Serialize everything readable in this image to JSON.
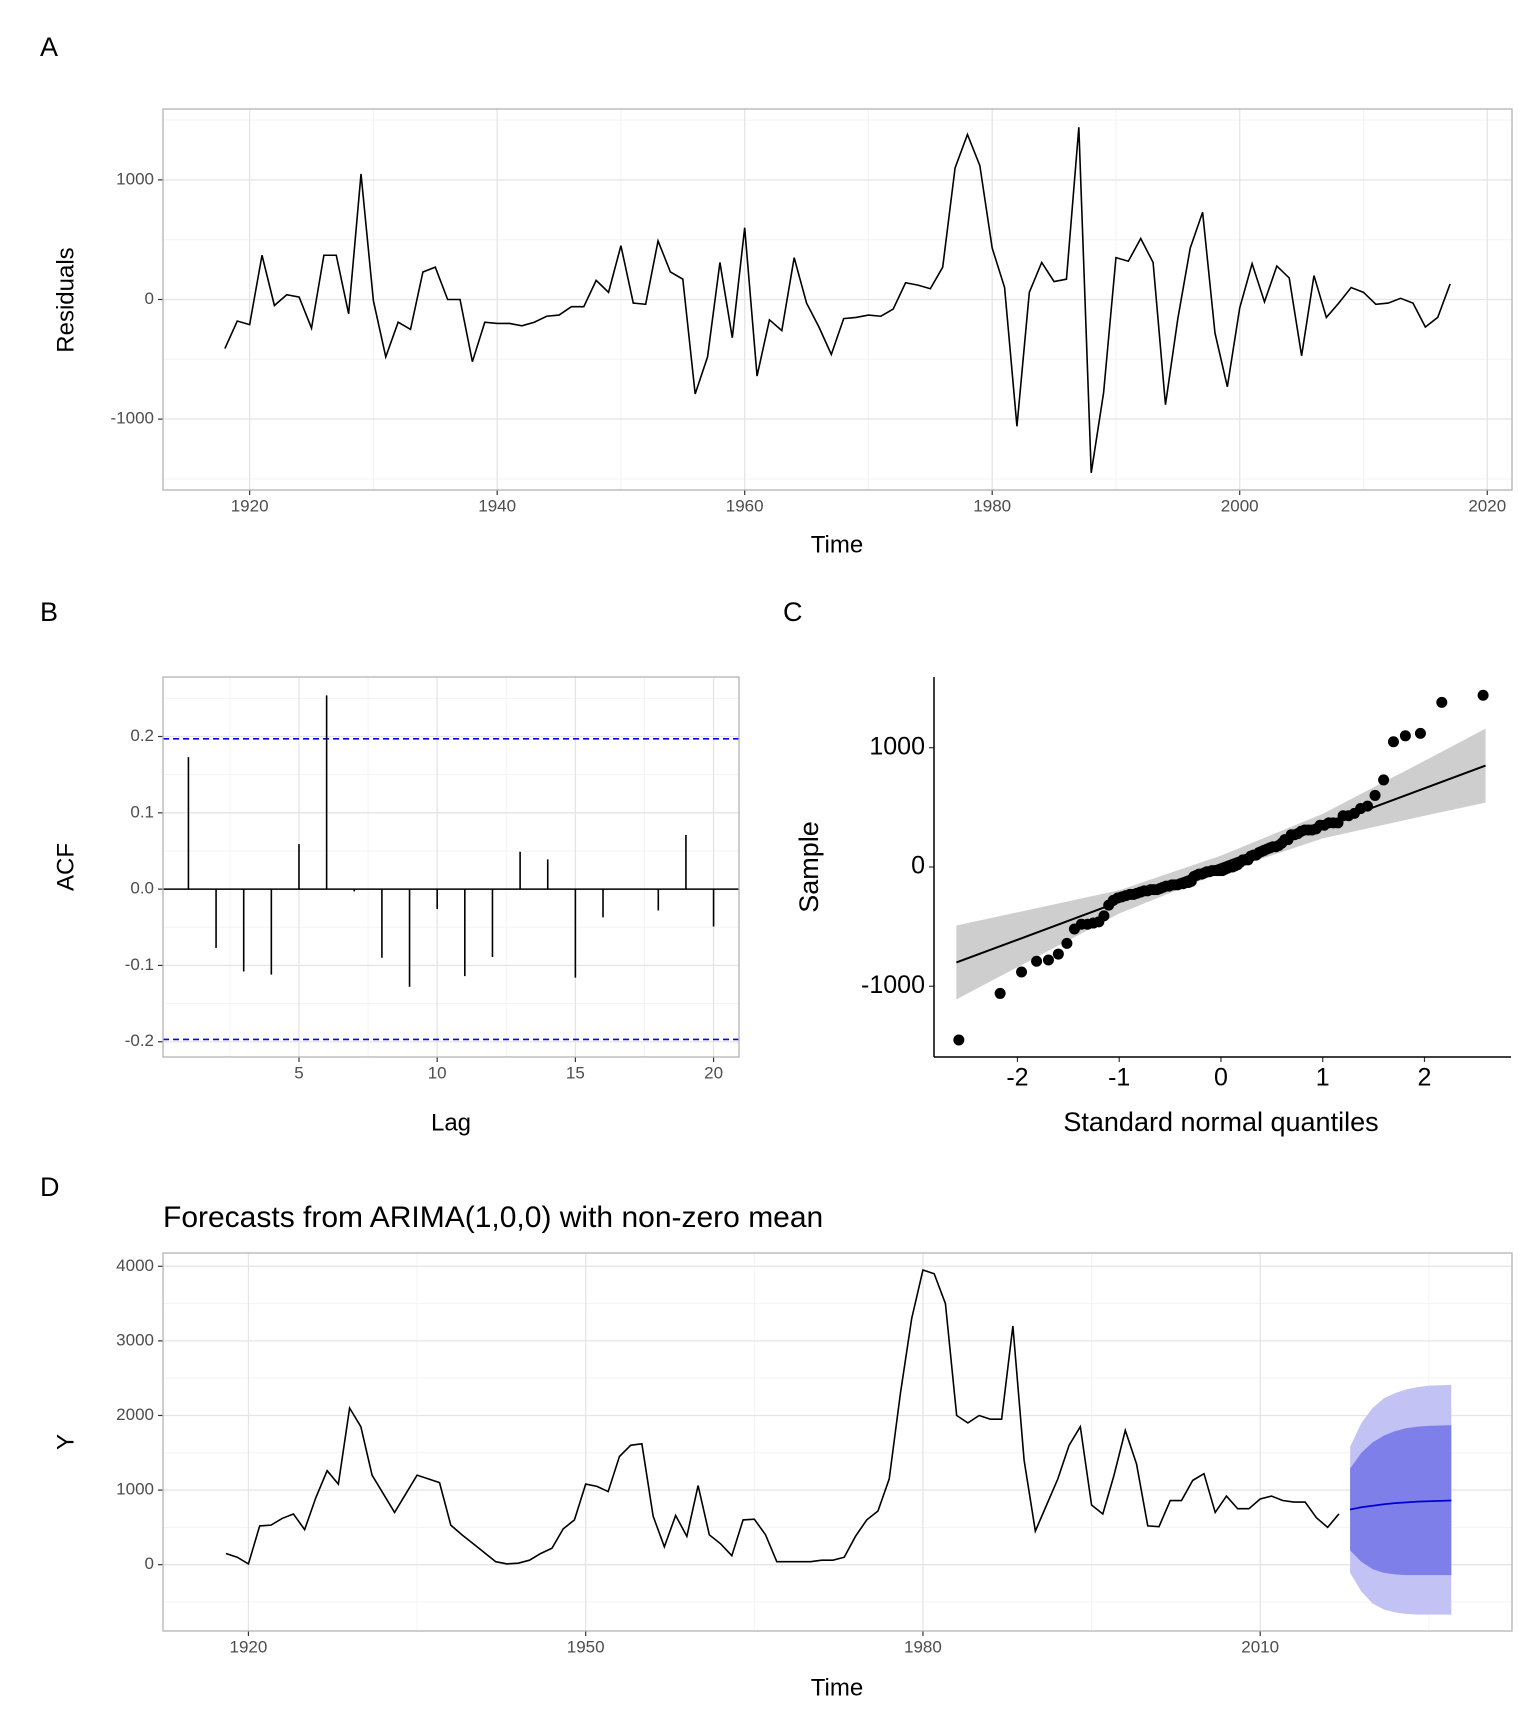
{
  "chart_data": [
    {
      "type": "line",
      "panel": "A",
      "xlabel": "Time",
      "ylabel": "Residuals",
      "color": "#000000",
      "grid": true,
      "x": [
        1918,
        1919,
        1920,
        1921,
        1922,
        1923,
        1924,
        1925,
        1926,
        1927,
        1928,
        1929,
        1930,
        1931,
        1932,
        1933,
        1934,
        1935,
        1936,
        1937,
        1938,
        1939,
        1940,
        1941,
        1942,
        1943,
        1944,
        1945,
        1946,
        1947,
        1948,
        1949,
        1950,
        1951,
        1952,
        1953,
        1954,
        1955,
        1956,
        1957,
        1958,
        1959,
        1960,
        1961,
        1962,
        1963,
        1964,
        1965,
        1966,
        1967,
        1968,
        1969,
        1970,
        1971,
        1972,
        1973,
        1974,
        1975,
        1976,
        1977,
        1978,
        1979,
        1980,
        1981,
        1982,
        1983,
        1984,
        1985,
        1986,
        1987,
        1988,
        1989,
        1990,
        1991,
        1992,
        1993,
        1994,
        1995,
        1996,
        1997,
        1998,
        1999,
        2000,
        2001,
        2002,
        2003,
        2004,
        2005,
        2006,
        2007,
        2008,
        2009,
        2010,
        2011,
        2012,
        2013,
        2014,
        2015,
        2016,
        2017
      ],
      "values": [
        -410,
        -180,
        -210,
        370,
        -50,
        40,
        20,
        -240,
        370,
        370,
        -120,
        1050,
        -10,
        -480,
        -190,
        -250,
        230,
        270,
        0,
        0,
        -520,
        -190,
        -200,
        -200,
        -220,
        -190,
        -140,
        -130,
        -60,
        -60,
        160,
        60,
        450,
        -30,
        -40,
        490,
        230,
        170,
        -790,
        -480,
        310,
        -320,
        600,
        -640,
        -170,
        -260,
        350,
        -30,
        -230,
        -460,
        -160,
        -150,
        -130,
        -140,
        -80,
        140,
        120,
        90,
        270,
        1100,
        1380,
        1120,
        430,
        100,
        -1060,
        60,
        310,
        150,
        170,
        1440,
        -1450,
        -780,
        350,
        320,
        510,
        310,
        -880,
        -160,
        430,
        730,
        -280,
        -730,
        -70,
        300,
        -20,
        280,
        180,
        -470,
        200,
        -150,
        -30,
        100,
        60,
        -40,
        -30,
        10,
        -30,
        -230,
        -150,
        130
      ],
      "xlim": [
        1913,
        2022
      ],
      "ylim": [
        -1593,
        1593
      ],
      "xticks": [
        1920,
        1940,
        1960,
        1980,
        2000,
        2020
      ],
      "yticks": [
        -1000,
        0,
        1000
      ]
    },
    {
      "type": "stem",
      "panel": "B",
      "xlabel": "Lag",
      "ylabel": "ACF",
      "color": "#000000",
      "grid": true,
      "ci": 0.197,
      "ci_color": "#0000ff",
      "x": [
        1,
        2,
        3,
        4,
        5,
        6,
        7,
        8,
        9,
        10,
        11,
        12,
        13,
        14,
        15,
        16,
        17,
        18,
        19,
        20
      ],
      "values": [
        0.173,
        -0.077,
        -0.108,
        -0.112,
        0.059,
        0.254,
        -0.003,
        -0.09,
        -0.128,
        -0.026,
        -0.114,
        -0.089,
        0.049,
        0.039,
        -0.116,
        -0.037,
        0,
        -0.028,
        0.071,
        -0.049
      ],
      "xlim": [
        0.08,
        20.92
      ],
      "ylim": [
        -0.22,
        0.278
      ],
      "xticks": [
        5,
        10,
        15,
        20
      ],
      "yticks": [
        -0.2,
        -0.1,
        {
          "value": 0,
          "label": "0.0"
        },
        0.1,
        0.2
      ]
    },
    {
      "type": "qq",
      "panel": "C",
      "xlabel": "Standard normal quantiles",
      "ylabel": "Sample",
      "color": "#000000",
      "band_color": "#bebebe",
      "grid": false,
      "x": [
        -2.576,
        -2.17,
        -1.96,
        -1.812,
        -1.695,
        -1.598,
        -1.514,
        -1.44,
        -1.372,
        -1.311,
        -1.254,
        -1.2,
        -1.15,
        -1.103,
        -1.058,
        -1.015,
        -0.974,
        -0.935,
        -0.896,
        -0.86,
        -0.824,
        -0.789,
        -0.755,
        -0.722,
        -0.69,
        -0.659,
        -0.628,
        -0.598,
        -0.568,
        -0.539,
        -0.51,
        -0.482,
        -0.454,
        -0.426,
        -0.399,
        -0.372,
        -0.345,
        -0.319,
        -0.292,
        -0.266,
        -0.24,
        -0.215,
        -0.189,
        -0.164,
        -0.138,
        -0.113,
        -0.088,
        -0.063,
        -0.038,
        -0.013,
        0.013,
        0.038,
        0.063,
        0.088,
        0.113,
        0.138,
        0.164,
        0.189,
        0.215,
        0.24,
        0.266,
        0.292,
        0.319,
        0.345,
        0.372,
        0.399,
        0.426,
        0.454,
        0.482,
        0.51,
        0.539,
        0.568,
        0.598,
        0.628,
        0.659,
        0.69,
        0.722,
        0.755,
        0.789,
        0.824,
        0.86,
        0.896,
        0.935,
        0.974,
        1.015,
        1.058,
        1.103,
        1.15,
        1.2,
        1.254,
        1.311,
        1.372,
        1.44,
        1.514,
        1.598,
        1.695,
        1.812,
        1.96,
        2.17,
        2.576
      ],
      "values": [
        -1450,
        -1060,
        -880,
        -790,
        -780,
        -730,
        -640,
        -520,
        -480,
        -480,
        -470,
        -460,
        -410,
        -320,
        -280,
        -260,
        -250,
        -240,
        -230,
        -230,
        -220,
        -210,
        -200,
        -200,
        -190,
        -190,
        -190,
        -180,
        -170,
        -160,
        -160,
        -150,
        -150,
        -150,
        -140,
        -140,
        -130,
        -130,
        -120,
        -80,
        -70,
        -60,
        -60,
        -50,
        -40,
        -40,
        -30,
        -30,
        -30,
        -30,
        -30,
        -20,
        -10,
        0,
        0,
        10,
        20,
        40,
        60,
        60,
        60,
        90,
        100,
        100,
        120,
        130,
        140,
        150,
        160,
        170,
        170,
        180,
        200,
        230,
        230,
        270,
        270,
        280,
        300,
        310,
        310,
        310,
        320,
        350,
        350,
        370,
        370,
        370,
        430,
        430,
        450,
        490,
        510,
        600,
        730,
        1050,
        1100,
        1120,
        1380,
        1440
      ],
      "fit": {
        "x": [
          -2.6,
          -2,
          -1,
          0,
          1,
          2,
          2.6
        ],
        "line": [
          -800,
          -610,
          -292,
          25,
          342,
          660,
          850
        ],
        "lower": [
          -1110,
          -840,
          -390,
          -45,
          240,
          430,
          540
        ],
        "upper": [
          -490,
          -380,
          -195,
          95,
          445,
          890,
          1160
        ]
      },
      "xlim": [
        -2.82,
        2.85
      ],
      "ylim": [
        -1593,
        1593
      ],
      "xticks": [
        -2,
        -1,
        0,
        1,
        2
      ],
      "yticks": [
        -1000,
        0,
        1000
      ]
    },
    {
      "type": "forecast",
      "panel": "D",
      "title": "Forecasts from ARIMA(1,0,0) with non-zero mean",
      "xlabel": "Time",
      "ylabel": "Y",
      "color": "#000000",
      "grid": true,
      "x": [
        1918,
        1919,
        1920,
        1921,
        1922,
        1923,
        1924,
        1925,
        1926,
        1927,
        1928,
        1929,
        1930,
        1931,
        1932,
        1933,
        1934,
        1935,
        1936,
        1937,
        1938,
        1939,
        1940,
        1941,
        1942,
        1943,
        1944,
        1945,
        1946,
        1947,
        1948,
        1949,
        1950,
        1951,
        1952,
        1953,
        1954,
        1955,
        1956,
        1957,
        1958,
        1959,
        1960,
        1961,
        1962,
        1963,
        1964,
        1965,
        1966,
        1967,
        1968,
        1969,
        1970,
        1971,
        1972,
        1973,
        1974,
        1975,
        1976,
        1977,
        1978,
        1979,
        1980,
        1981,
        1982,
        1983,
        1984,
        1985,
        1986,
        1987,
        1988,
        1989,
        1990,
        1991,
        1992,
        1993,
        1994,
        1995,
        1996,
        1997,
        1998,
        1999,
        2000,
        2001,
        2002,
        2003,
        2004,
        2005,
        2006,
        2007,
        2008,
        2009,
        2010,
        2011,
        2012,
        2013,
        2014,
        2015,
        2016,
        2017
      ],
      "values": [
        150,
        100,
        10,
        520,
        530,
        620,
        680,
        470,
        900,
        1260,
        1080,
        2100,
        1850,
        1200,
        950,
        700,
        950,
        1200,
        1150,
        1100,
        530,
        400,
        280,
        160,
        40,
        10,
        20,
        60,
        150,
        220,
        480,
        600,
        1080,
        1050,
        980,
        1450,
        1600,
        1620,
        650,
        240,
        660,
        380,
        1060,
        400,
        280,
        120,
        600,
        610,
        400,
        40,
        40,
        40,
        40,
        60,
        60,
        100,
        380,
        600,
        720,
        1150,
        2300,
        3300,
        3950,
        3900,
        3500,
        2000,
        1900,
        2000,
        1950,
        1950,
        3200,
        1400,
        450,
        800,
        1150,
        1600,
        1850,
        800,
        680,
        1200,
        1800,
        1350,
        520,
        510,
        860,
        860,
        1130,
        1220,
        700,
        920,
        750,
        750,
        880,
        920,
        860,
        840,
        840,
        630,
        500,
        680
      ],
      "forecast": {
        "x": [
          2018,
          2019,
          2020,
          2021,
          2022,
          2023,
          2024,
          2025,
          2026,
          2027
        ],
        "mean": [
          740,
          770,
          790,
          810,
          825,
          835,
          845,
          850,
          855,
          860
        ],
        "lo80": [
          190,
          40,
          -60,
          -110,
          -130,
          -140,
          -140,
          -140,
          -140,
          -140
        ],
        "hi80": [
          1290,
          1500,
          1640,
          1730,
          1790,
          1830,
          1850,
          1860,
          1865,
          1870
        ],
        "lo95": [
          -110,
          -360,
          -520,
          -600,
          -640,
          -660,
          -670,
          -670,
          -670,
          -670
        ],
        "hi95": [
          1580,
          1900,
          2100,
          2230,
          2300,
          2350,
          2380,
          2400,
          2405,
          2410
        ],
        "mean_color": "#0000cc",
        "band80_color": "#7f7fea",
        "band95_color": "#c2c2f5"
      },
      "xlim": [
        1912.4,
        2032.4
      ],
      "ylim": [
        -889,
        4178
      ],
      "xticks": [
        1920,
        1950,
        1980,
        2010
      ],
      "yticks": [
        0,
        1000,
        2000,
        3000,
        4000
      ]
    }
  ]
}
